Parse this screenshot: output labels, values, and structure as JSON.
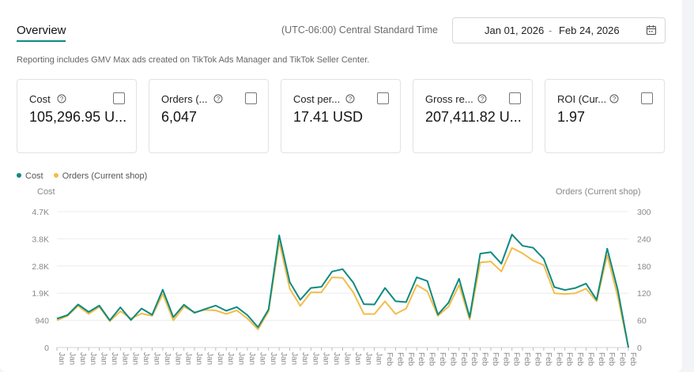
{
  "header": {
    "tab_label": "Overview",
    "timezone": "(UTC-06:00) Central Standard Time",
    "date_start": "Jan 01, 2026",
    "date_sep": "-",
    "date_end": "Feb 24, 2026",
    "calendar_icon": "calendar-icon"
  },
  "note": "Reporting includes GMV Max ads created on TikTok Ads Manager and TikTok Seller Center.",
  "metrics": [
    {
      "label": "Cost",
      "value": "105,296.95 U...",
      "selected": true
    },
    {
      "label": "Orders (...",
      "value": "6,047",
      "selected": true
    },
    {
      "label": "Cost per...",
      "value": "17.41 USD",
      "selected": false
    },
    {
      "label": "Gross re...",
      "value": "207,411.82 U...",
      "selected": false
    },
    {
      "label": "ROI (Cur...",
      "value": "1.97",
      "selected": false
    }
  ],
  "colors": {
    "accent": "#0e8a80",
    "cost_line": "#0e8a80",
    "orders_line": "#f2bd4a",
    "selected_card_bg": "#d9f0f0"
  },
  "chart_data": {
    "type": "line",
    "legend": [
      "Cost",
      "Orders (Current shop)"
    ],
    "ylabel_left": "Cost",
    "ylabel_right": "Orders (Current shop)",
    "y_left_ticks": [
      "0",
      "940",
      "1.9K",
      "2.8K",
      "3.8K",
      "4.7K"
    ],
    "y_right_ticks": [
      "0",
      "60",
      "120",
      "180",
      "240",
      "300"
    ],
    "ylim_left": [
      0,
      4700
    ],
    "ylim_right": [
      0,
      300
    ],
    "x_label_prefix": [
      "Jan",
      "Jan",
      "Jan",
      "Jan",
      "Jan",
      "Jan",
      "Jan",
      "Jan",
      "Jan",
      "Jan",
      "Jan",
      "Jan",
      "Jan",
      "Jan",
      "Jan",
      "Jan",
      "Jan",
      "Jan",
      "Jan",
      "Jan",
      "Jan",
      "Jan",
      "Jan",
      "Jan",
      "Jan",
      "Jan",
      "Jan",
      "Jan",
      "Jan",
      "Jan",
      "Jan",
      "Feb",
      "Feb",
      "Feb",
      "Feb",
      "Feb",
      "Feb",
      "Feb",
      "Feb",
      "Feb",
      "Feb",
      "Feb",
      "Feb",
      "Feb",
      "Feb",
      "Feb",
      "Feb",
      "Feb",
      "Feb",
      "Feb",
      "Feb",
      "Feb",
      "Feb",
      "Feb",
      "Feb"
    ],
    "series": [
      {
        "name": "Cost",
        "axis": "left",
        "values": [
          1000,
          1120,
          1490,
          1230,
          1450,
          940,
          1390,
          950,
          1350,
          1130,
          2000,
          1050,
          1480,
          1200,
          1330,
          1450,
          1270,
          1400,
          1120,
          700,
          1320,
          3880,
          2260,
          1650,
          2060,
          2100,
          2630,
          2710,
          2250,
          1500,
          1490,
          2060,
          1600,
          1570,
          2430,
          2300,
          1140,
          1550,
          2380,
          1050,
          3250,
          3300,
          2900,
          3910,
          3520,
          3450,
          3070,
          2090,
          1990,
          2060,
          2210,
          1650,
          3420,
          1990,
          0
        ]
      },
      {
        "name": "Orders (Current shop)",
        "axis": "right",
        "values": [
          60,
          70,
          92,
          74,
          90,
          58,
          80,
          64,
          75,
          70,
          118,
          60,
          90,
          78,
          83,
          82,
          74,
          82,
          64,
          40,
          80,
          234,
          130,
          92,
          122,
          122,
          155,
          154,
          122,
          74,
          74,
          102,
          74,
          86,
          138,
          124,
          70,
          90,
          138,
          62,
          188,
          190,
          168,
          220,
          208,
          192,
          182,
          120,
          118,
          120,
          130,
          102,
          204,
          112,
          0
        ]
      }
    ]
  }
}
